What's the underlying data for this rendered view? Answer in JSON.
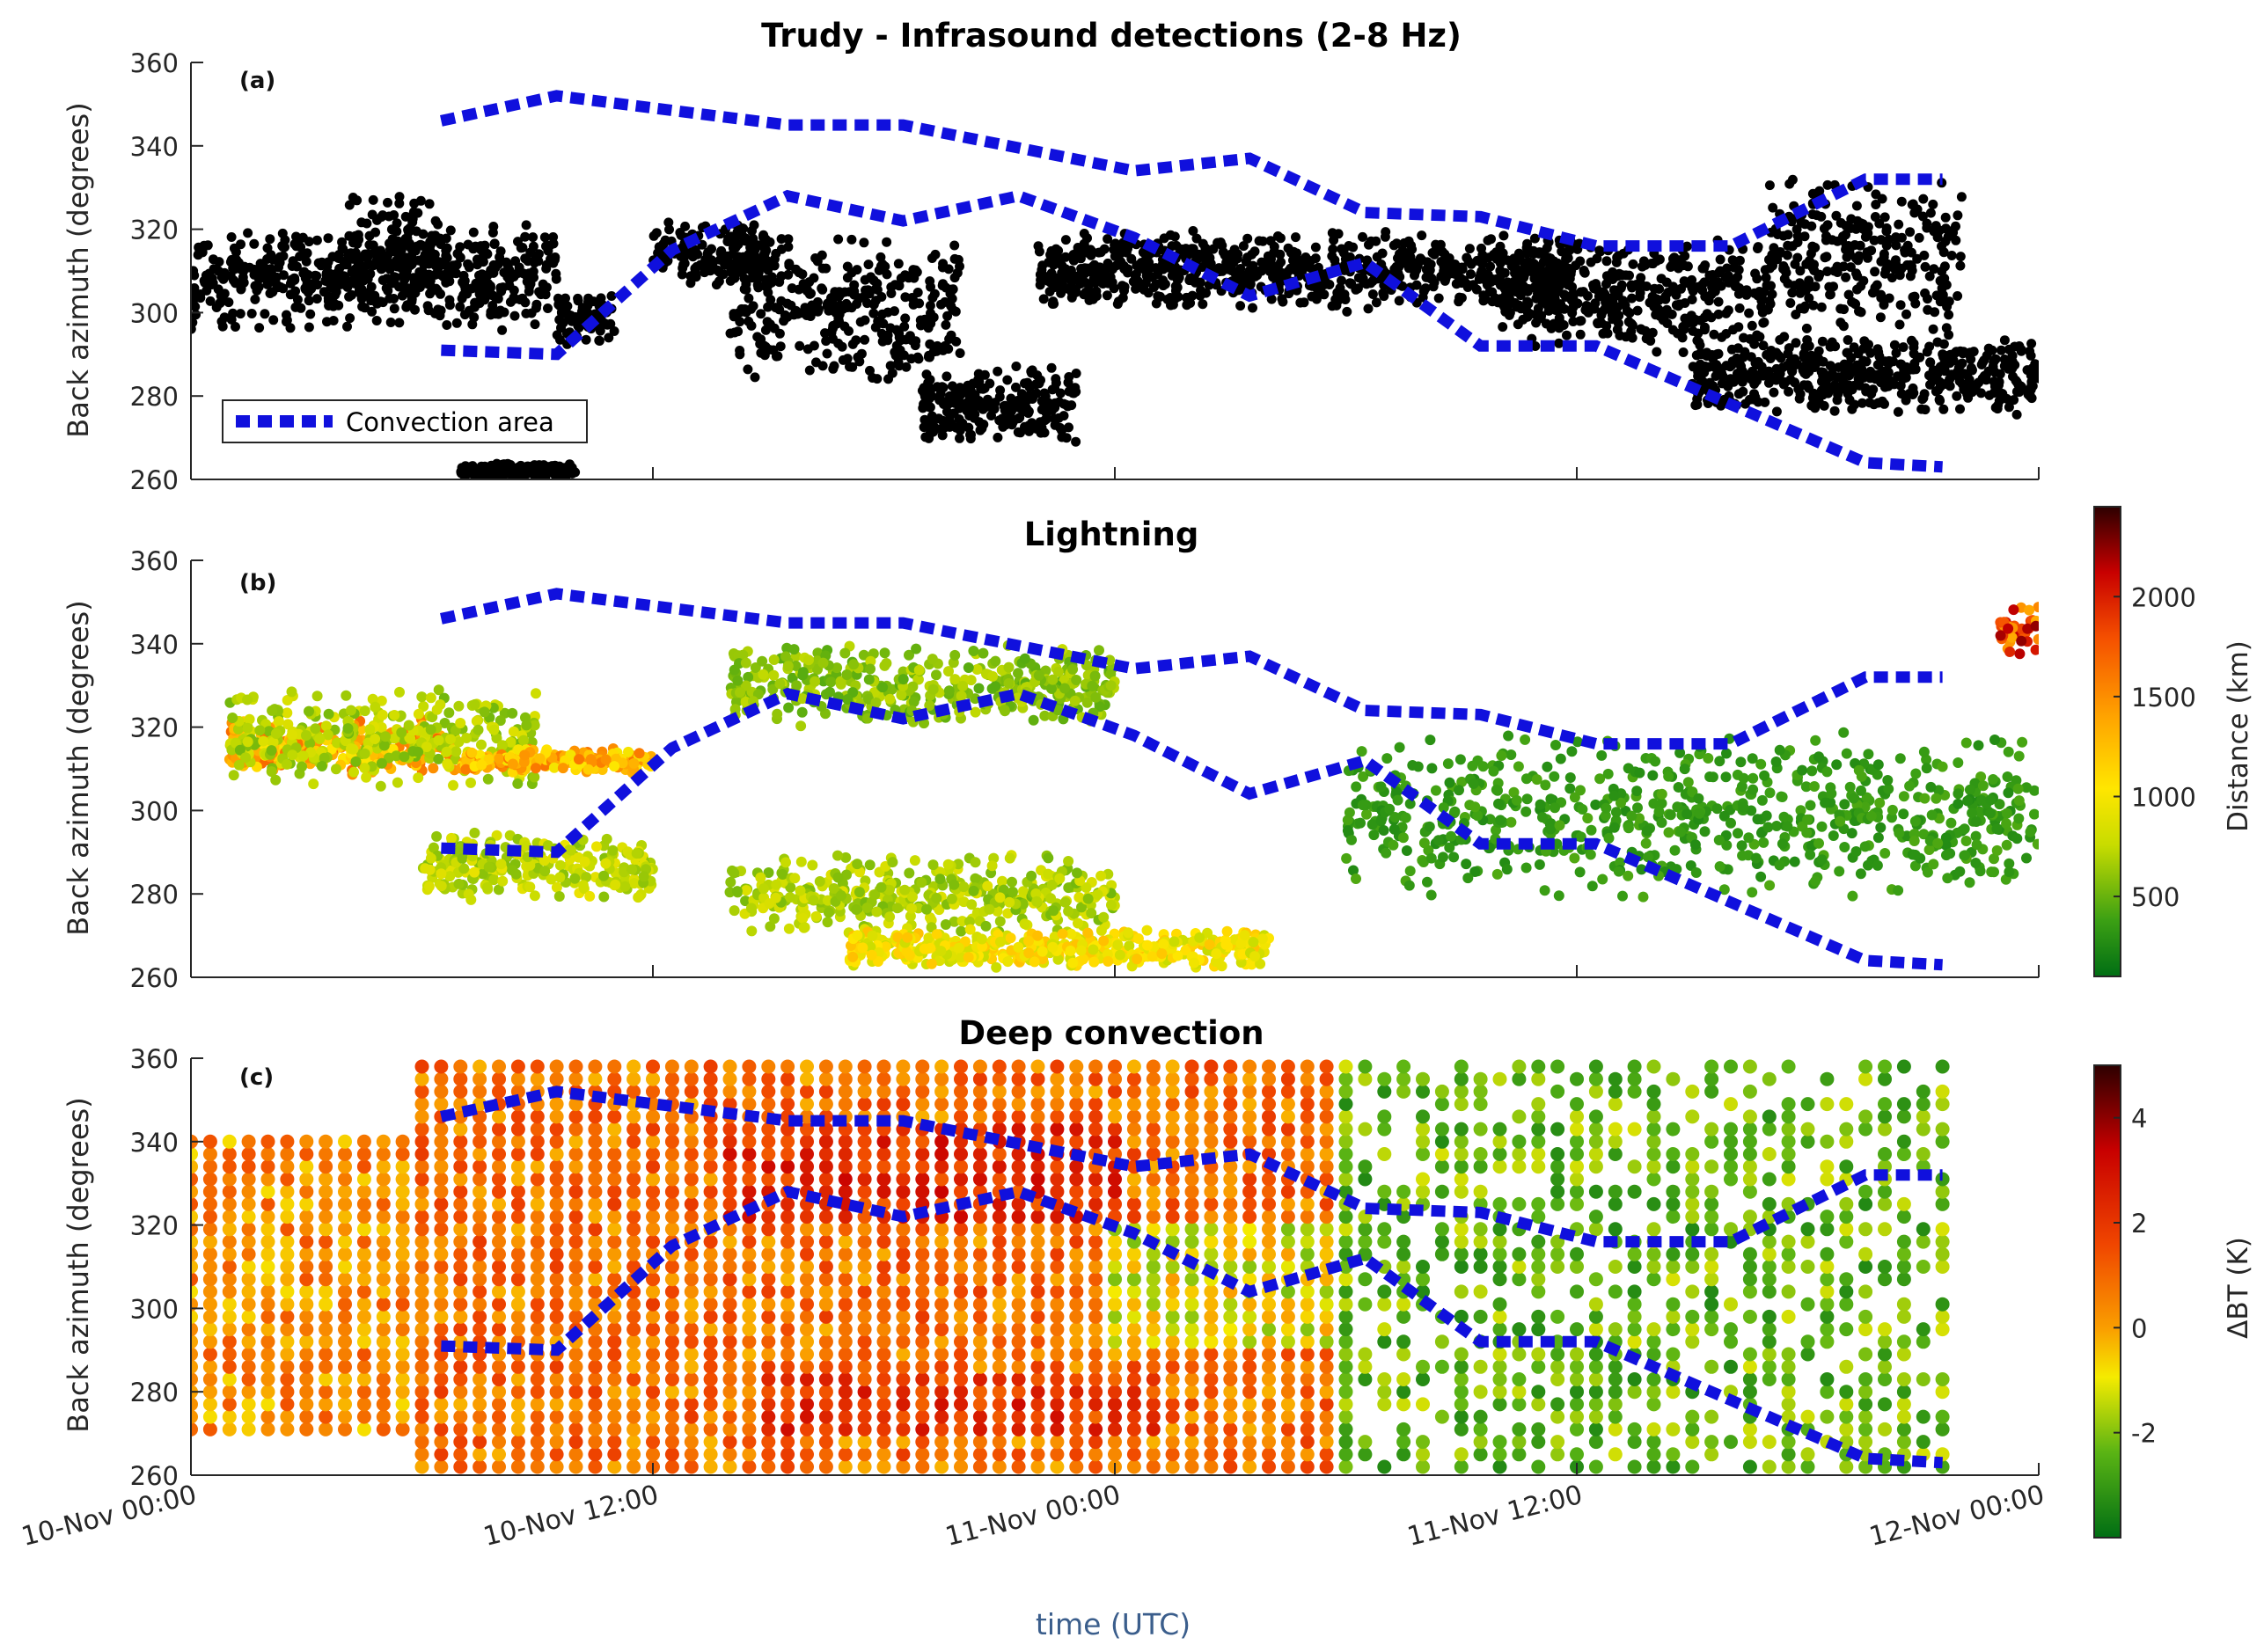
{
  "figure": {
    "xlabel": "time (UTC)",
    "x_ticks": [
      "10-Nov 00:00",
      "10-Nov 12:00",
      "11-Nov 00:00",
      "11-Nov 12:00",
      "12-Nov 00:00"
    ],
    "x_range_hours": [
      0,
      48
    ],
    "colors": {
      "axis": "#262626",
      "xlabel": "#3b5e8c",
      "convection": "#1010dd",
      "infrasound": "#000000"
    }
  },
  "convection_area": {
    "legend_label": "Convection area",
    "upper": {
      "t": [
        6.5,
        9.5,
        15.5,
        18.5,
        24.5,
        27.5,
        30.5,
        33.5,
        36.5,
        40.0,
        43.5,
        45.5
      ],
      "az": [
        346,
        352,
        345,
        345,
        334,
        337,
        324,
        323,
        316,
        316,
        332,
        332
      ]
    },
    "lower": {
      "t": [
        6.5,
        9.5,
        12.5,
        15.5,
        18.5,
        21.5,
        24.5,
        27.5,
        30.5,
        33.5,
        36.5,
        40.0,
        43.5,
        45.5
      ],
      "az": [
        291,
        290,
        315,
        328,
        322,
        328,
        318,
        304,
        312,
        292,
        292,
        278,
        264,
        263
      ]
    }
  },
  "chart_data": [
    {
      "type": "scatter",
      "panel_label": "(a)",
      "title": "Trudy - Infrasound detections (2-8 Hz)",
      "xlabel": "",
      "ylabel": "Back azimuth (degrees)",
      "ylim": [
        260,
        360
      ],
      "yticks": [
        "260",
        "280",
        "300",
        "320",
        "340",
        "360"
      ],
      "legend_position": "bottom-left",
      "clusters": [
        {
          "t": [
            0,
            9.5
          ],
          "az": [
            295,
            322
          ]
        },
        {
          "t": [
            4,
            6.5
          ],
          "az": [
            300,
            330
          ]
        },
        {
          "t": [
            9.5,
            11
          ],
          "az": [
            292,
            305
          ]
        },
        {
          "t": [
            12,
            15
          ],
          "az": [
            305,
            322
          ]
        },
        {
          "t": [
            14,
            20
          ],
          "az": [
            282,
            320
          ]
        },
        {
          "t": [
            19,
            23
          ],
          "az": [
            268,
            288
          ]
        },
        {
          "t": [
            22,
            36
          ],
          "az": [
            300,
            320
          ]
        },
        {
          "t": [
            34,
            41
          ],
          "az": [
            290,
            318
          ]
        },
        {
          "t": [
            39,
            48
          ],
          "az": [
            275,
            295
          ]
        },
        {
          "t": [
            41,
            46
          ],
          "az": [
            292,
            335
          ]
        },
        {
          "t": [
            7,
            10
          ],
          "az": [
            260,
            264
          ]
        }
      ]
    },
    {
      "type": "scatter",
      "panel_label": "(b)",
      "title": "Lightning",
      "xlabel": "",
      "ylabel": "Back azimuth (degrees)",
      "ylim": [
        260,
        360
      ],
      "yticks": [
        "260",
        "280",
        "300",
        "320",
        "340",
        "360"
      ],
      "colorbar": {
        "label": "Distance (km)",
        "ticks": [
          "500",
          "1000",
          "1500",
          "2000"
        ],
        "tick_values": [
          500,
          1000,
          1500,
          2000
        ],
        "range": [
          100,
          2450
        ]
      },
      "clusters": [
        {
          "t": [
            1,
            7
          ],
          "az": [
            308,
            322
          ],
          "dist": 1350
        },
        {
          "t": [
            1,
            9
          ],
          "az": [
            305,
            330
          ],
          "dist": 700
        },
        {
          "t": [
            7,
            12
          ],
          "az": [
            309,
            315
          ],
          "dist": 1300
        },
        {
          "t": [
            6,
            12
          ],
          "az": [
            278,
            295
          ],
          "dist": 750
        },
        {
          "t": [
            14,
            24
          ],
          "az": [
            270,
            290
          ],
          "dist": 700
        },
        {
          "t": [
            17,
            28
          ],
          "az": [
            262,
            272
          ],
          "dist": 1000
        },
        {
          "t": [
            14,
            24
          ],
          "az": [
            320,
            340
          ],
          "dist": 600
        },
        {
          "t": [
            30,
            48
          ],
          "az": [
            278,
            320
          ],
          "dist": 350
        },
        {
          "t": [
            47,
            48
          ],
          "az": [
            337,
            350
          ],
          "dist": 1800
        }
      ]
    },
    {
      "type": "heatmap",
      "panel_label": "(c)",
      "title": "Deep convection",
      "xlabel": "time (UTC)",
      "ylabel": "Back azimuth (degrees)",
      "ylim": [
        260,
        360
      ],
      "yticks": [
        "260",
        "280",
        "300",
        "320",
        "340",
        "360"
      ],
      "x_range": [
        0,
        45.5
      ],
      "colorbar": {
        "label": "ΔBT (K)",
        "ticks": [
          "-2",
          "0",
          "2",
          "4"
        ],
        "tick_values": [
          -2,
          0,
          2,
          4
        ],
        "range": [
          -4,
          5
        ]
      },
      "regions": [
        {
          "t": [
            0,
            6
          ],
          "az": [
            270,
            340
          ],
          "dbt": 0.3
        },
        {
          "t": [
            6,
            30
          ],
          "az": [
            262,
            360
          ],
          "dbt": 0.8
        },
        {
          "t": [
            14,
            24
          ],
          "az": [
            320,
            345
          ],
          "dbt": 2.2
        },
        {
          "t": [
            15,
            25
          ],
          "az": [
            270,
            285
          ],
          "dbt": 2.0
        },
        {
          "t": [
            24,
            30
          ],
          "az": [
            290,
            320
          ],
          "dbt": -1.0
        },
        {
          "t": [
            30,
            45.5
          ],
          "az": [
            262,
            360
          ],
          "dbt": -2.3
        }
      ]
    }
  ]
}
